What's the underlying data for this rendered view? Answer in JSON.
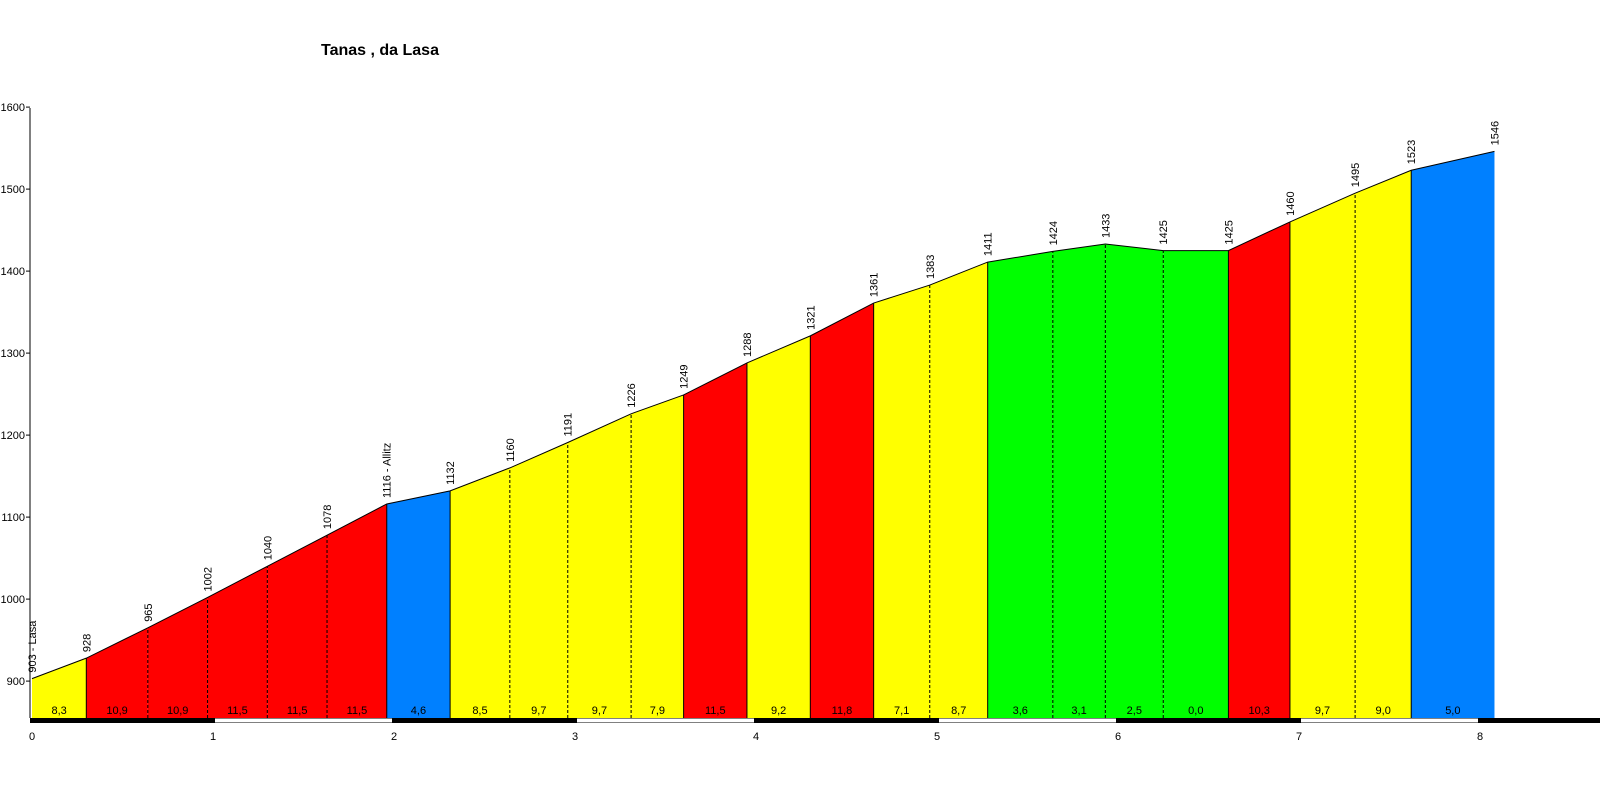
{
  "chart_data": {
    "type": "area",
    "title": "Tanas , da Lasa",
    "xlabel": "",
    "ylabel": "",
    "xlim": [
      0,
      8.45
    ],
    "ylim": [
      855,
      1600
    ],
    "y_ticks": [
      900,
      1000,
      1100,
      1200,
      1300,
      1400,
      1500,
      1600
    ],
    "x_ticks": [
      0,
      1,
      2,
      3,
      4,
      5,
      6,
      7,
      8
    ],
    "points": [
      {
        "x": 0.0,
        "y": 903,
        "label": "903 - Lasa"
      },
      {
        "x": 0.3,
        "y": 928,
        "label": "928"
      },
      {
        "x": 0.64,
        "y": 965,
        "label": "965"
      },
      {
        "x": 0.97,
        "y": 1002,
        "label": "1002"
      },
      {
        "x": 1.3,
        "y": 1040,
        "label": "1040"
      },
      {
        "x": 1.63,
        "y": 1078,
        "label": "1078"
      },
      {
        "x": 1.96,
        "y": 1116,
        "label": "1116 - Allitz"
      },
      {
        "x": 2.31,
        "y": 1132,
        "label": "1132"
      },
      {
        "x": 2.64,
        "y": 1160,
        "label": "1160"
      },
      {
        "x": 2.96,
        "y": 1191,
        "label": "1191"
      },
      {
        "x": 3.31,
        "y": 1226,
        "label": "1226"
      },
      {
        "x": 3.6,
        "y": 1249,
        "label": "1249"
      },
      {
        "x": 3.95,
        "y": 1288,
        "label": "1288"
      },
      {
        "x": 4.3,
        "y": 1321,
        "label": "1321"
      },
      {
        "x": 4.65,
        "y": 1361,
        "label": "1361"
      },
      {
        "x": 4.96,
        "y": 1383,
        "label": "1383"
      },
      {
        "x": 5.28,
        "y": 1411,
        "label": "1411"
      },
      {
        "x": 5.64,
        "y": 1424,
        "label": "1424"
      },
      {
        "x": 5.93,
        "y": 1433,
        "label": "1433"
      },
      {
        "x": 6.25,
        "y": 1425,
        "label": "1425"
      },
      {
        "x": 6.61,
        "y": 1425,
        "label": "1425"
      },
      {
        "x": 6.95,
        "y": 1460,
        "label": "1460"
      },
      {
        "x": 7.31,
        "y": 1495,
        "label": "1495"
      },
      {
        "x": 7.62,
        "y": 1523,
        "label": "1523"
      },
      {
        "x": 8.08,
        "y": 1546,
        "label": "1546"
      }
    ],
    "segments": [
      {
        "grade": "8,3",
        "color": "#ffff00"
      },
      {
        "grade": "10,9",
        "color": "#ff0000"
      },
      {
        "grade": "10,9",
        "color": "#ff0000"
      },
      {
        "grade": "11,5",
        "color": "#ff0000"
      },
      {
        "grade": "11,5",
        "color": "#ff0000"
      },
      {
        "grade": "11,5",
        "color": "#ff0000"
      },
      {
        "grade": "4,6",
        "color": "#0080ff"
      },
      {
        "grade": "8,5",
        "color": "#ffff00"
      },
      {
        "grade": "9,7",
        "color": "#ffff00"
      },
      {
        "grade": "9,7",
        "color": "#ffff00"
      },
      {
        "grade": "7,9",
        "color": "#ffff00"
      },
      {
        "grade": "11,5",
        "color": "#ff0000"
      },
      {
        "grade": "9,2",
        "color": "#ffff00"
      },
      {
        "grade": "11,8",
        "color": "#ff0000"
      },
      {
        "grade": "7,1",
        "color": "#ffff00"
      },
      {
        "grade": "8,7",
        "color": "#ffff00"
      },
      {
        "grade": "3,6",
        "color": "#00ff00"
      },
      {
        "grade": "3,1",
        "color": "#00ff00"
      },
      {
        "grade": "2,5",
        "color": "#00ff00"
      },
      {
        "grade": "0,0",
        "color": "#00ff00"
      },
      {
        "grade": "10,3",
        "color": "#ff0000"
      },
      {
        "grade": "9,7",
        "color": "#ffff00"
      },
      {
        "grade": "9,0",
        "color": "#ffff00"
      },
      {
        "grade": "5,0",
        "color": "#0080ff"
      }
    ],
    "grid": false,
    "legend": "none"
  }
}
